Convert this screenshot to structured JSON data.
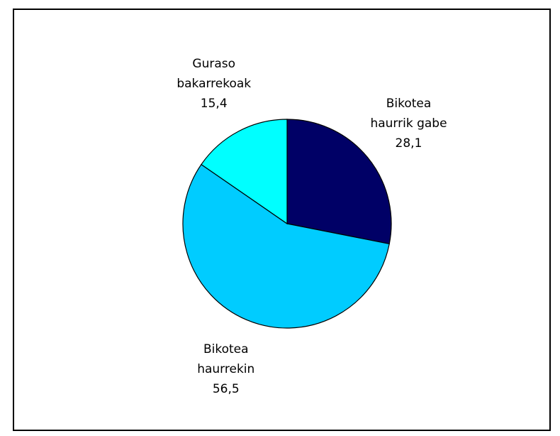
{
  "chart_data": {
    "type": "pie",
    "categories": [
      "Bikotea\nhaurrik gabe",
      "Bikotea\nhaurrekin",
      "Guraso\nbakarrekoak"
    ],
    "values": [
      28.1,
      56.5,
      15.4
    ],
    "value_labels": [
      "28,1",
      "56,5",
      "15,4"
    ],
    "colors": [
      "#000066",
      "#00ccff",
      "#00ffff"
    ]
  }
}
